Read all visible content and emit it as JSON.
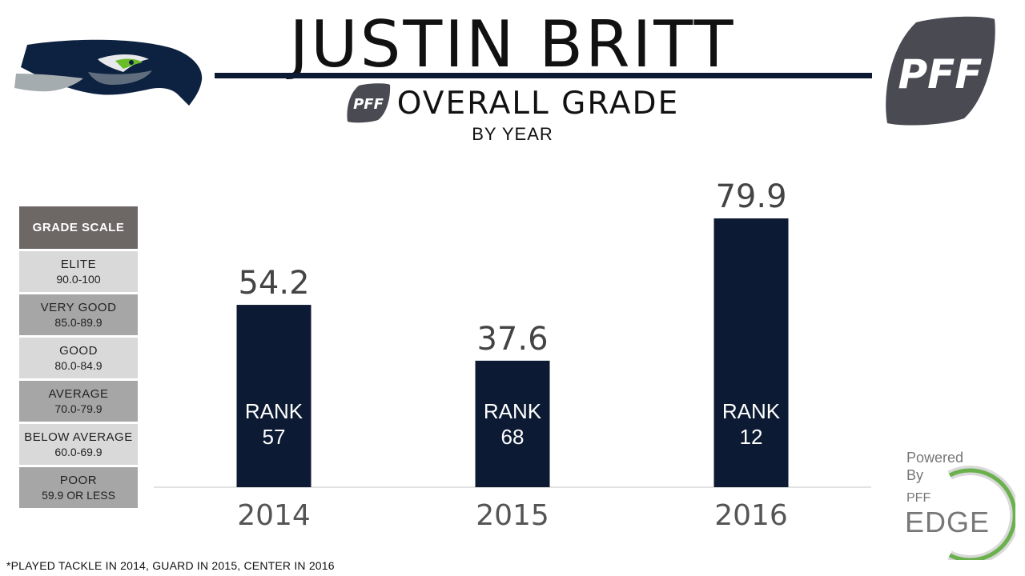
{
  "header": {
    "player_name": "JUSTIN BRITT",
    "subtitle": "OVERALL GRADE",
    "byline": "BY YEAR",
    "brand_small": "PFF",
    "brand_large": "PFF"
  },
  "grade_scale": {
    "title": "GRADE SCALE",
    "rows": [
      {
        "label": "ELITE",
        "range": "90.0-100",
        "color": "#d9d9d9"
      },
      {
        "label": "VERY GOOD",
        "range": "85.0-89.9",
        "color": "#a6a6a6"
      },
      {
        "label": "GOOD",
        "range": "80.0-84.9",
        "color": "#d9d9d9"
      },
      {
        "label": "AVERAGE",
        "range": "70.0-79.9",
        "color": "#a6a6a6"
      },
      {
        "label": "BELOW AVERAGE",
        "range": "60.0-69.9",
        "color": "#d9d9d9"
      },
      {
        "label": "POOR",
        "range": "59.9 OR LESS",
        "color": "#a6a6a6"
      }
    ]
  },
  "chart_data": {
    "type": "bar",
    "categories": [
      "2014",
      "2015",
      "2016"
    ],
    "values": [
      54.2,
      37.6,
      79.9
    ],
    "value_labels": [
      "54.2",
      "37.6",
      "79.9"
    ],
    "bar_text_prefix": "RANK",
    "ranks": [
      "57",
      "68",
      "12"
    ],
    "title": "OVERALL GRADE",
    "xlabel": "",
    "ylabel": "",
    "ylim": [
      0,
      80
    ],
    "grid": false,
    "bar_color": "#0d1a33"
  },
  "footnote": "*PLAYED  TACKLE IN 2014, GUARD  IN 2015, CENTER  IN 2016",
  "powered_by": {
    "line1": "Powered",
    "line2": "By",
    "line3": "PFF",
    "line4": "EDGE",
    "accent_color": "#6ab04c"
  },
  "icons": {
    "team_logo": "seahawk-logo-icon",
    "brand_logo": "pff-football-logo-icon"
  }
}
